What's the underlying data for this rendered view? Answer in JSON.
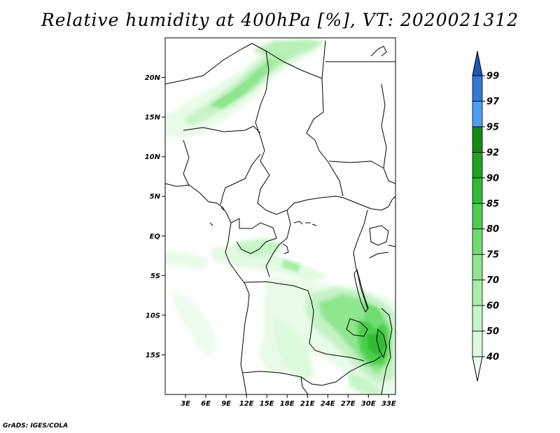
{
  "title": "Relative humidity at 400hPa [%], VT: 2020021312",
  "credit": "GrADS: IGES/COLA",
  "map": {
    "lon_range": [
      0,
      34
    ],
    "lat_range": [
      -20,
      25
    ],
    "lat_ticks": [
      {
        "value": 20,
        "label": "20N"
      },
      {
        "value": 15,
        "label": "15N"
      },
      {
        "value": 10,
        "label": "10N"
      },
      {
        "value": 5,
        "label": "5N"
      },
      {
        "value": 0,
        "label": "EQ"
      },
      {
        "value": -5,
        "label": "5S"
      },
      {
        "value": -10,
        "label": "10S"
      },
      {
        "value": -15,
        "label": "15S"
      }
    ],
    "lon_ticks": [
      {
        "value": 3,
        "label": "3E"
      },
      {
        "value": 6,
        "label": "6E"
      },
      {
        "value": 9,
        "label": "9E"
      },
      {
        "value": 12,
        "label": "12E"
      },
      {
        "value": 15,
        "label": "15E"
      },
      {
        "value": 18,
        "label": "18E"
      },
      {
        "value": 21,
        "label": "21E"
      },
      {
        "value": 24,
        "label": "24E"
      },
      {
        "value": 27,
        "label": "27E"
      },
      {
        "value": 30,
        "label": "30E"
      },
      {
        "value": 33,
        "label": "33E"
      }
    ]
  },
  "colorbar": {
    "unit": "%",
    "levels": [
      "40",
      "50",
      "60",
      "70",
      "75",
      "80",
      "85",
      "90",
      "92",
      "95",
      "97",
      "99"
    ],
    "colors": [
      "#f0fff0",
      "#dcfadc",
      "#c6f5c6",
      "#a8eea8",
      "#8ee68e",
      "#6edc6e",
      "#4ccf4c",
      "#30bb30",
      "#1ea51e",
      "#108c10",
      "#4a9ff0",
      "#2f7ad8",
      "#1e58b8"
    ]
  }
}
